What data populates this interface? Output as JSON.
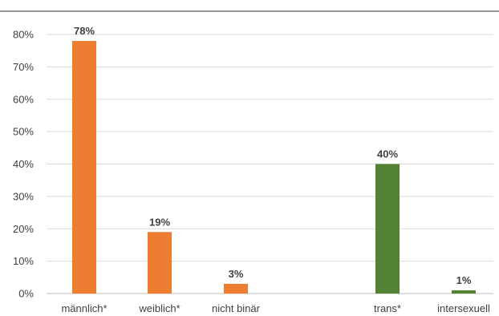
{
  "chart_data": {
    "type": "bar",
    "title": "",
    "xlabel": "",
    "ylabel": "",
    "ylim": [
      0,
      80
    ],
    "y_ticks": [
      0,
      10,
      20,
      30,
      40,
      50,
      60,
      70,
      80
    ],
    "y_tick_labels": [
      "0%",
      "10%",
      "20%",
      "30%",
      "40%",
      "50%",
      "60%",
      "70%",
      "80%"
    ],
    "grid": true,
    "legend": "none",
    "categories": [
      "männlich*",
      "weiblich*",
      "nicht binär",
      "",
      "trans*",
      "intersexuell"
    ],
    "values": [
      78,
      19,
      3,
      null,
      40,
      1
    ],
    "data_labels": [
      "78%",
      "19%",
      "3%",
      "",
      "40%",
      "1%"
    ],
    "bar_colors": [
      "#ed7d31",
      "#ed7d31",
      "#ed7d31",
      "",
      "#548235",
      "#548235"
    ]
  },
  "colors": {
    "orange": "#ed7d31",
    "green": "#548235",
    "grid": "#d9d9d9",
    "text": "#404040",
    "top_rule": "#595959"
  }
}
